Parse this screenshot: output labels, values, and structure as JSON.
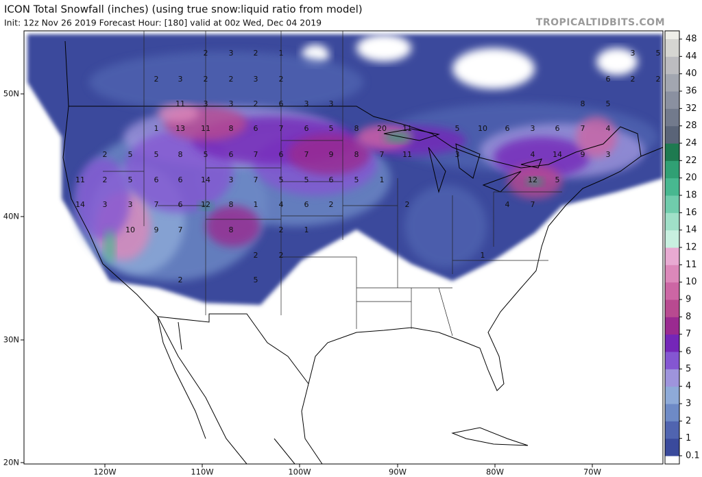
{
  "header": {
    "title": "ICON Total Snowfall (inches) (using true snow:liquid ratio from model)",
    "subtitle": "Init: 12z Nov 26 2019   Forecast Hour: [180]   valid at 00z Wed, Dec 04 2019",
    "watermark": "TROPICALTIDBITS.COM"
  },
  "map": {
    "lat_labels": [
      "50N",
      "40N",
      "30N",
      "20N"
    ],
    "lon_labels": [
      "120W",
      "110W",
      "100W",
      "90W",
      "80W",
      "70W"
    ],
    "snow_labels": [
      2,
      3,
      2,
      1,
      2,
      3,
      2,
      2,
      3,
      2,
      11,
      3,
      3,
      2,
      6,
      3,
      3,
      1,
      13,
      11,
      8,
      6,
      7,
      6,
      5,
      8,
      20,
      11,
      5,
      10,
      6,
      3,
      6,
      7,
      2,
      5,
      5,
      8,
      5,
      6,
      7,
      6,
      7,
      9,
      8,
      7,
      11,
      3,
      4,
      14,
      9,
      3,
      11,
      2,
      5,
      6,
      6,
      14,
      3,
      7,
      5,
      5,
      6,
      5,
      1,
      12,
      5,
      14,
      3,
      3,
      7,
      6,
      12,
      8,
      1,
      4,
      6,
      2,
      2,
      4,
      7,
      10,
      9,
      7,
      8,
      2,
      1,
      2,
      2,
      1,
      2,
      5,
      3,
      5,
      6,
      2,
      2,
      8,
      5,
      4
    ]
  },
  "colorbar": {
    "labels": [
      0.1,
      1,
      2,
      3,
      4,
      5,
      6,
      7,
      8,
      9,
      10,
      11,
      12,
      14,
      16,
      18,
      20,
      22,
      24,
      28,
      32,
      36,
      40,
      44,
      48
    ],
    "colors": [
      "#3a4a9c",
      "#5064b0",
      "#6e8ac6",
      "#8eaad8",
      "#9e94dc",
      "#8456d2",
      "#7426b8",
      "#9a2a90",
      "#b84a90",
      "#cc66a4",
      "#dc88ba",
      "#e8aad2",
      "#c8f0e0",
      "#a0e0c8",
      "#70ccac",
      "#48b890",
      "#30a074",
      "#1e7a50",
      "#5a6478",
      "#727a8c",
      "#8a90a0",
      "#a2a6b0",
      "#bcbcc0",
      "#d6d6d2"
    ]
  }
}
